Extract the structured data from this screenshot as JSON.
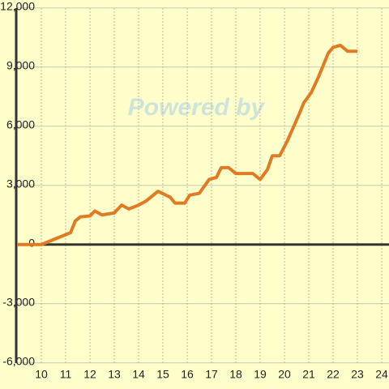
{
  "chart_data": {
    "type": "line",
    "watermark": "Powered by",
    "x": [
      9,
      10,
      11.2,
      11.4,
      11.6,
      12,
      12.2,
      12.5,
      13,
      13.3,
      13.6,
      14,
      14.3,
      14.8,
      15.3,
      15.5,
      15.9,
      16.1,
      16.5,
      16.9,
      17.2,
      17.4,
      17.7,
      18,
      18.3,
      18.7,
      19,
      19.3,
      19.5,
      19.8,
      20.1,
      20.6,
      20.8,
      21.1,
      21.4,
      21.8,
      22,
      22.3,
      22.6,
      23
    ],
    "series": [
      {
        "color": "#e07b24",
        "values": [
          0,
          0,
          600,
          1200,
          1400,
          1450,
          1700,
          1500,
          1600,
          2000,
          1800,
          2000,
          2200,
          2700,
          2400,
          2100,
          2100,
          2500,
          2600,
          3300,
          3400,
          3900,
          3900,
          3600,
          3600,
          3600,
          3300,
          3800,
          4500,
          4500,
          5200,
          6600,
          7200,
          7700,
          8500,
          9700,
          10000,
          10100,
          9800,
          9800
        ]
      }
    ],
    "xlim": [
      9,
      24.3
    ],
    "xticks": [
      10,
      11,
      12,
      13,
      14,
      15,
      16,
      17,
      18,
      19,
      20,
      21,
      22,
      23,
      24
    ],
    "ylim": [
      -6300,
      12400
    ],
    "yticks": [
      {
        "value": -6000,
        "label": "-6,000"
      },
      {
        "value": -3000,
        "label": "-3,000"
      },
      0,
      {
        "value": 3000,
        "label": "3,000"
      },
      {
        "value": 6000,
        "label": "6,000"
      },
      {
        "value": 9000,
        "label": "9,000"
      },
      {
        "value": 12000,
        "label": "12,000"
      }
    ],
    "grid": true
  }
}
